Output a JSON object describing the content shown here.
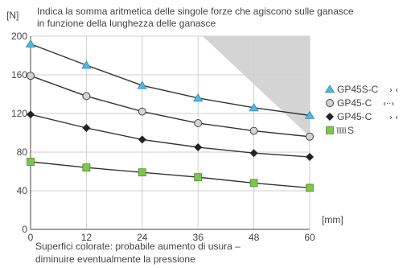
{
  "chart_data": {
    "type": "line",
    "description_lines": [
      "Indica la somma aritmetica delle singole forze che agiscono sulle ganasce",
      "in funzione della lunghezza delle ganasce"
    ],
    "ylabel": "[N]",
    "xlabel": "[mm]",
    "x": [
      0,
      12,
      24,
      36,
      48,
      60
    ],
    "xlim": [
      0,
      60
    ],
    "ylim": [
      0,
      200
    ],
    "yticks": [
      0,
      40,
      80,
      120,
      160,
      200
    ],
    "grid": true,
    "legend_position": "right",
    "shaded_region": {
      "meaning": "Superfici colorate: probabile aumento di usura",
      "boundary": [
        [
          37,
          200
        ],
        [
          60,
          200
        ],
        [
          60,
          96
        ]
      ],
      "color": "#d4d4d4"
    },
    "series": [
      {
        "name": "GP45S-C",
        "symbol": "▲ »«",
        "marker": "triangle",
        "color": "#4fb7e0",
        "values": [
          192,
          170,
          149,
          136,
          126,
          118
        ]
      },
      {
        "name": "GP45-C",
        "symbol": "↔",
        "marker": "circle",
        "color": "#d4d4d4",
        "values": [
          159,
          138,
          122,
          110,
          102,
          96
        ]
      },
      {
        "name": "GP45-C",
        "symbol": "»«",
        "marker": "diamond",
        "color": "#222222",
        "values": [
          119,
          105,
          93,
          85,
          79,
          75
        ]
      },
      {
        "name": "S",
        "symbol": "≈",
        "marker": "square",
        "color": "#7ec44f",
        "values": [
          70,
          64,
          59,
          54,
          48,
          43
        ]
      }
    ],
    "note_lines": [
      "Superfici colorate: probabile aumento di usura –",
      "diminuire eventualmente la pressione"
    ]
  }
}
